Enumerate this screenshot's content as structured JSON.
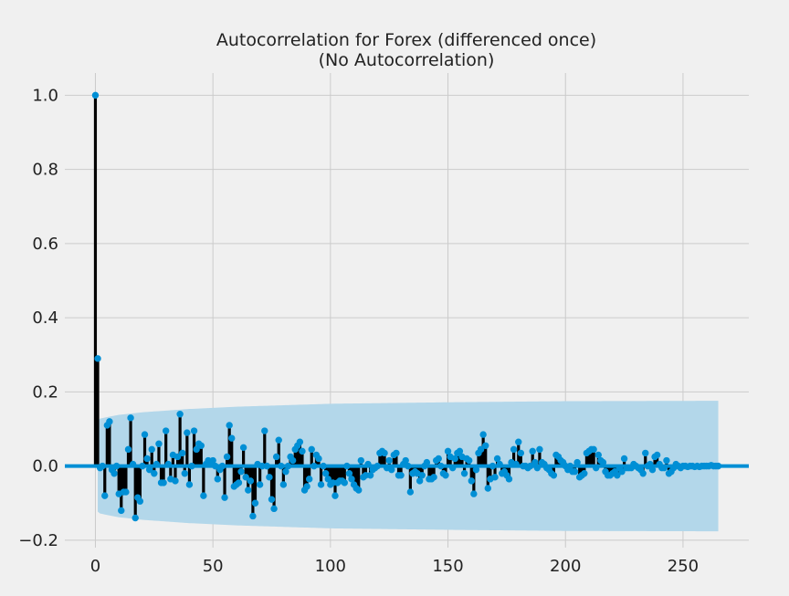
{
  "chart_data": {
    "type": "stem",
    "title": "Autocorrelation for Forex (differenced once)",
    "subtitle": "(No Autocorrelation)",
    "xlabel": "",
    "ylabel": "",
    "xlim": [
      -13,
      278
    ],
    "ylim": [
      -0.22,
      1.06
    ],
    "x_ticks": [
      0,
      50,
      100,
      150,
      200,
      250
    ],
    "y_ticks": [
      -0.2,
      0.0,
      0.2,
      0.4,
      0.6,
      0.8,
      1.0
    ],
    "x_tick_labels": [
      "0",
      "50",
      "100",
      "150",
      "200",
      "250"
    ],
    "y_tick_labels": [
      "−0.2",
      "0.0",
      "0.2",
      "0.4",
      "0.6",
      "0.8",
      "1.0"
    ],
    "grid": true,
    "colors": {
      "background": "#f0f0f0",
      "grid": "#cbcbcb",
      "stem": "#000000",
      "marker": "#008fd5",
      "baseline": "#008fd5",
      "confidence_band": "#b3d7ea"
    },
    "confidence_band": {
      "lags": [
        1,
        2,
        5,
        10,
        20,
        40,
        60,
        80,
        100,
        150,
        200,
        265
      ],
      "upper": [
        0.123,
        0.128,
        0.132,
        0.138,
        0.145,
        0.154,
        0.16,
        0.164,
        0.168,
        0.172,
        0.175,
        0.176
      ]
    },
    "acf_values": [
      1.0,
      0.29,
      -0.005,
      0.0,
      -0.08,
      0.11,
      0.12,
      -0.01,
      -0.02,
      0.0,
      -0.075,
      -0.12,
      -0.07,
      -0.07,
      0.045,
      0.13,
      0.005,
      -0.14,
      -0.085,
      -0.095,
      0.0,
      0.085,
      0.02,
      -0.01,
      0.045,
      -0.02,
      0.005,
      0.06,
      -0.045,
      -0.045,
      0.095,
      0.005,
      -0.035,
      0.03,
      -0.04,
      0.025,
      0.14,
      0.035,
      -0.02,
      0.09,
      -0.05,
      0.0,
      0.095,
      0.045,
      0.06,
      0.055,
      -0.08,
      0.005,
      0.015,
      0.005,
      0.015,
      0.0,
      -0.035,
      -0.01,
      0.0,
      -0.085,
      0.025,
      0.11,
      0.075,
      -0.055,
      -0.05,
      -0.045,
      -0.015,
      0.05,
      -0.03,
      -0.065,
      -0.04,
      -0.135,
      -0.1,
      0.005,
      -0.05,
      0.0,
      0.095,
      0.0,
      -0.03,
      -0.09,
      -0.115,
      0.025,
      0.07,
      0.0,
      -0.05,
      -0.015,
      0.0,
      0.025,
      0.015,
      0.045,
      0.055,
      0.065,
      0.04,
      -0.065,
      -0.055,
      -0.035,
      0.045,
      0.0,
      0.03,
      0.02,
      -0.05,
      0.0,
      -0.02,
      -0.035,
      -0.05,
      -0.045,
      -0.08,
      -0.045,
      -0.04,
      -0.04,
      -0.045,
      0.0,
      -0.02,
      -0.035,
      -0.05,
      -0.06,
      -0.065,
      0.015,
      -0.03,
      -0.025,
      0.005,
      -0.025,
      -0.01,
      -0.005,
      0.0,
      0.035,
      0.04,
      0.035,
      -0.005,
      0.015,
      -0.01,
      0.03,
      0.035,
      -0.025,
      -0.025,
      0.005,
      0.015,
      0.0,
      -0.07,
      -0.02,
      -0.015,
      -0.02,
      -0.04,
      -0.025,
      0.0,
      0.01,
      -0.035,
      -0.035,
      -0.03,
      0.015,
      0.02,
      0.0,
      -0.02,
      -0.025,
      0.04,
      0.025,
      -0.005,
      0.02,
      0.035,
      0.04,
      0.025,
      -0.02,
      0.02,
      0.015,
      -0.04,
      -0.075,
      -0.01,
      0.035,
      0.045,
      0.085,
      0.055,
      -0.06,
      -0.035,
      0.0,
      -0.03,
      0.02,
      0.005,
      -0.02,
      -0.015,
      -0.025,
      -0.035,
      0.01,
      0.045,
      0.005,
      0.065,
      0.035,
      0.0,
      0.0,
      -0.005,
      0.0,
      0.04,
      0.01,
      -0.005,
      0.045,
      0.01,
      0.005,
      -0.005,
      -0.01,
      -0.02,
      -0.025,
      0.03,
      0.025,
      0.015,
      0.01,
      0.0,
      -0.01,
      0.0,
      -0.015,
      -0.015,
      0.01,
      -0.03,
      -0.025,
      -0.02,
      0.035,
      0.04,
      0.045,
      0.045,
      -0.005,
      0.03,
      0.015,
      0.01,
      -0.015,
      -0.025,
      -0.025,
      -0.02,
      -0.015,
      -0.025,
      -0.005,
      -0.015,
      0.02,
      -0.005,
      -0.005,
      -0.005,
      0.005,
      0.0,
      -0.005,
      -0.01,
      -0.02,
      0.035,
      0.0,
      0.005,
      -0.01,
      0.025,
      0.03,
      0.005,
      -0.005,
      -0.005,
      0.015,
      -0.02,
      -0.015,
      -0.005,
      0.005,
      0.0,
      -0.005,
      0.0,
      0.0,
      -0.002,
      0.0,
      0.0,
      -0.002,
      0.0,
      -0.002,
      0.0,
      0.0,
      0.0,
      0.0,
      0.002,
      0.0,
      0.0,
      0.0
    ]
  }
}
